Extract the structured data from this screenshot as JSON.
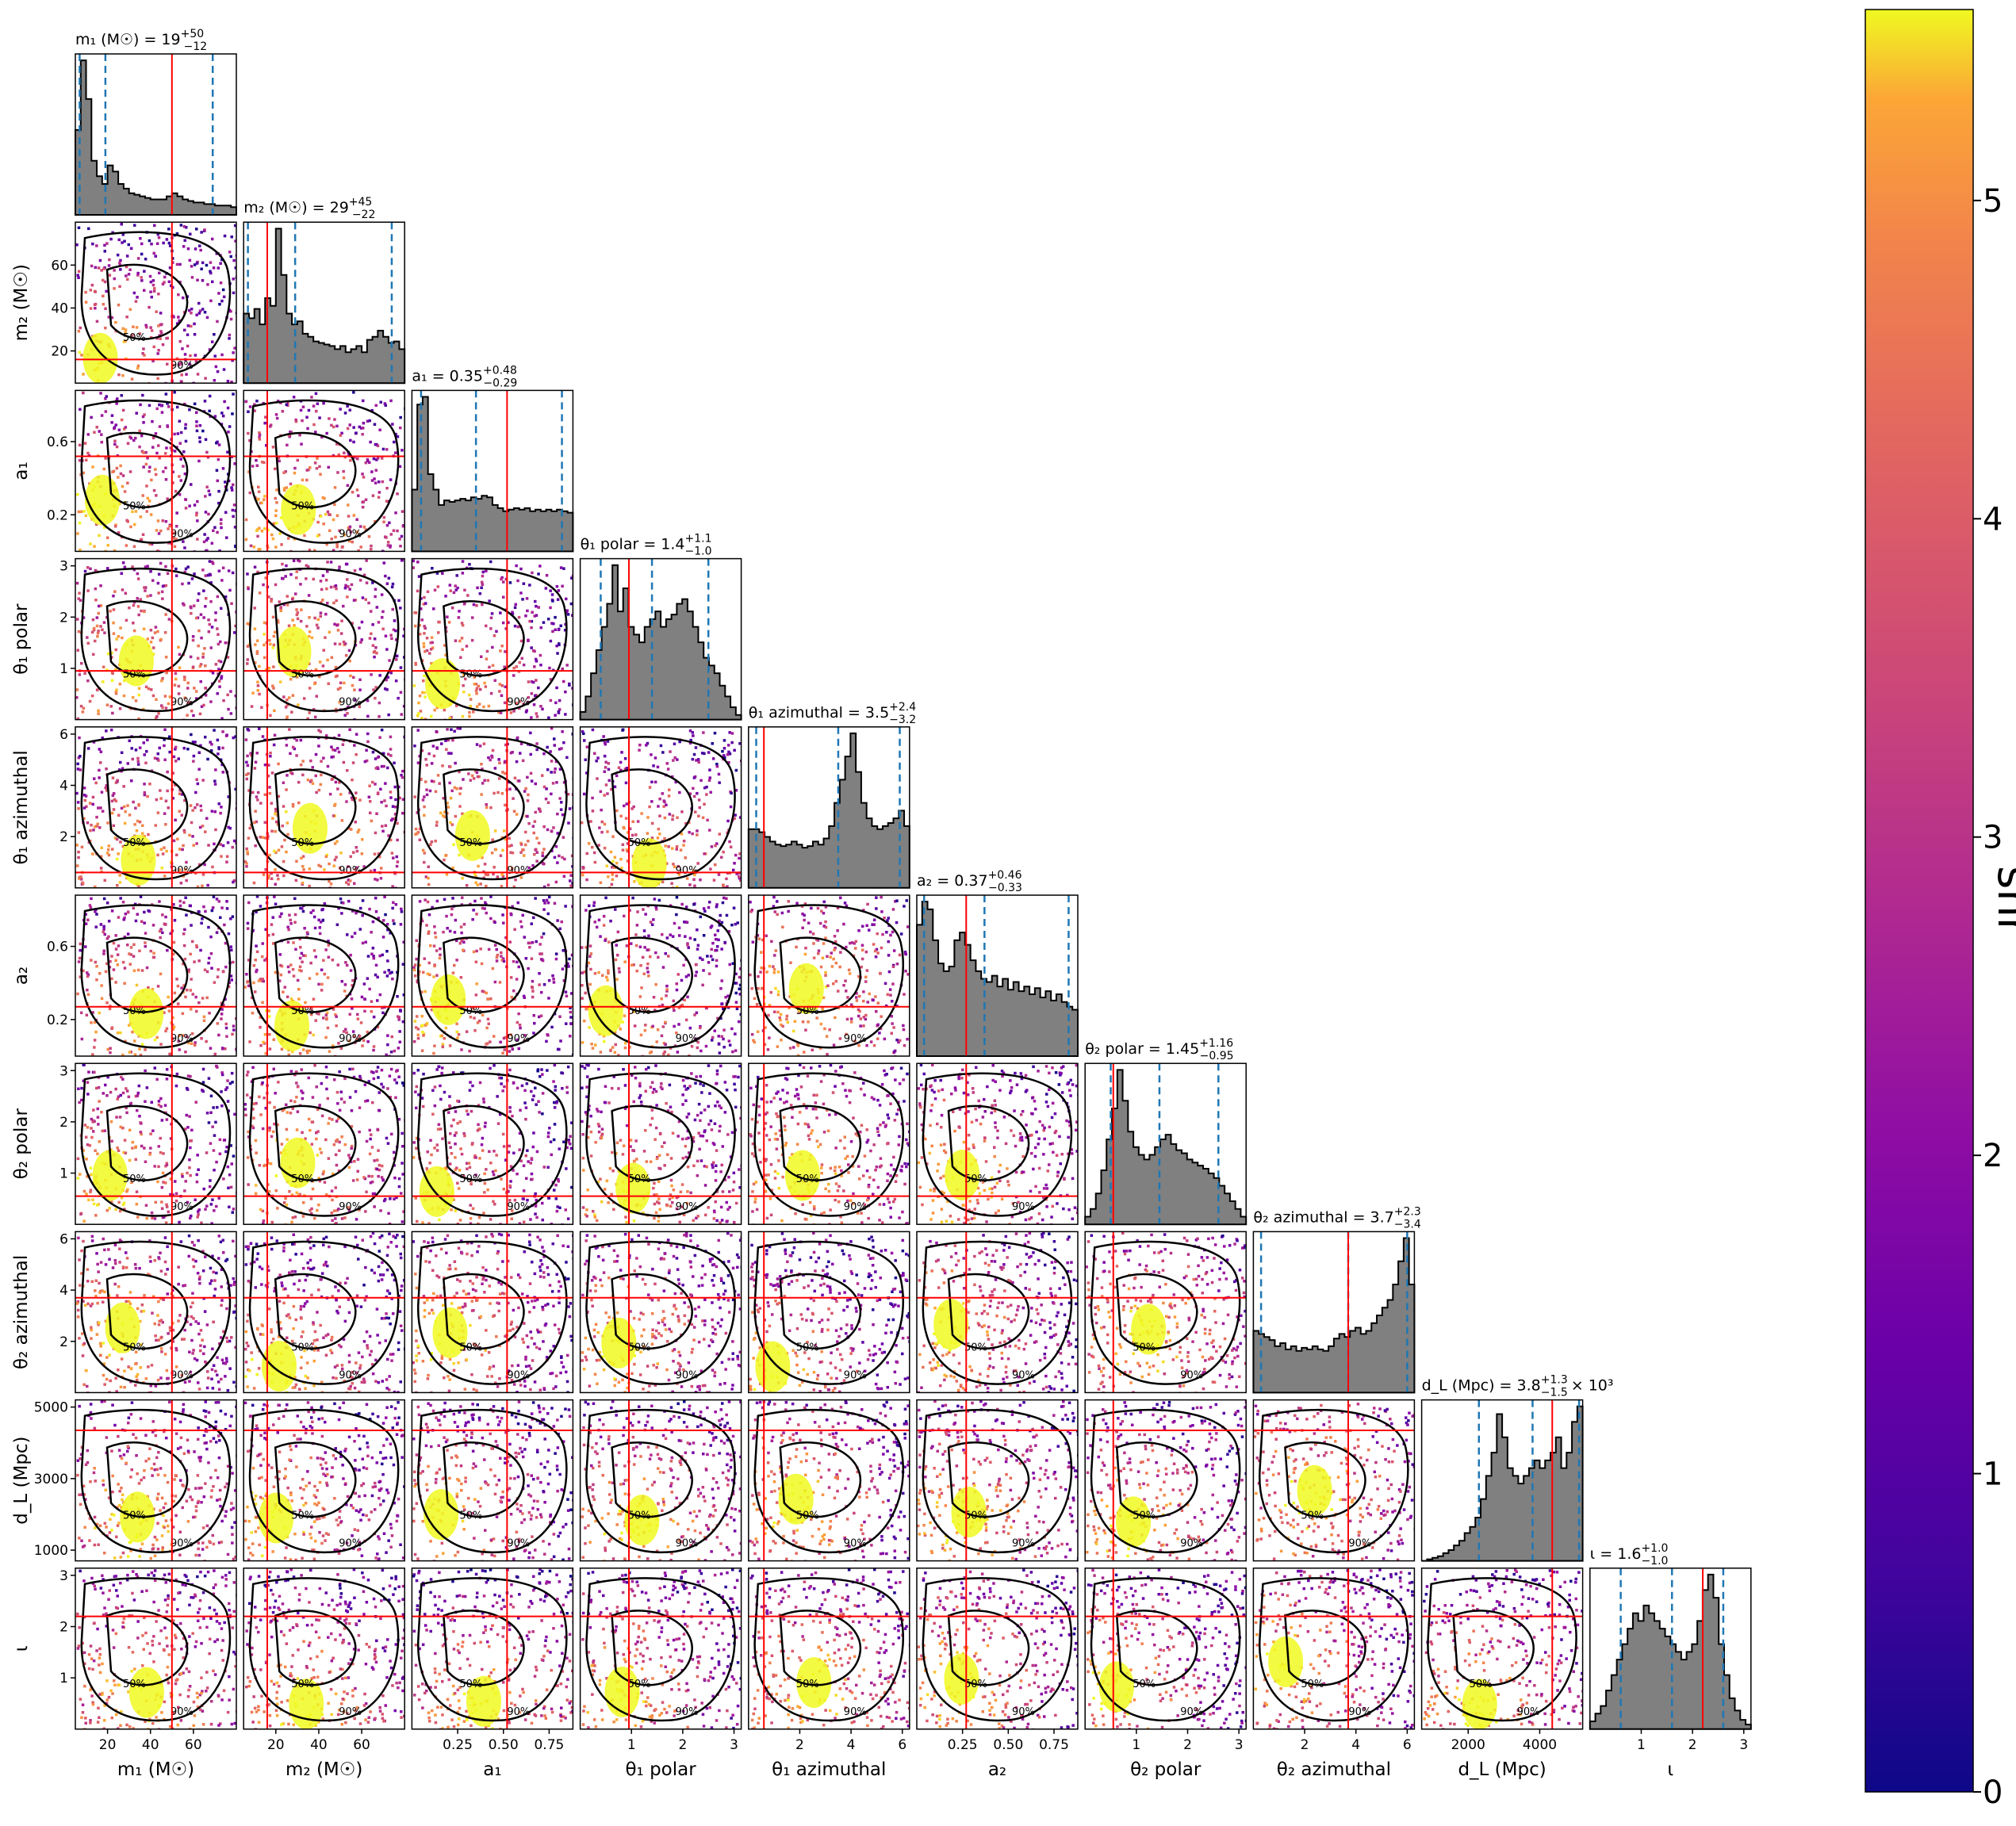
{
  "chart_data": {
    "type": "corner",
    "color_metric": "snr",
    "colorbar": {
      "label": "snr",
      "ticks": [
        "0",
        "1",
        "2",
        "3",
        "4",
        "5"
      ],
      "range": [
        0,
        5.6
      ],
      "colormap": "plasma"
    },
    "colors": {
      "hist_fill": "#808080",
      "truth": "#ff0000",
      "quantile": "#1f77b4",
      "contour": "#000000"
    },
    "contour_labels": [
      "50%",
      "90%"
    ],
    "parameters": [
      {
        "id": "m1",
        "axis_label": "m₁ (M☉)",
        "title": "m₁ (M☉) = 19",
        "title_sup": "+50",
        "title_sub": "−12",
        "range": [
          5,
          80
        ],
        "ticks": [
          20,
          40,
          60
        ],
        "tick_labels": [
          "20",
          "40",
          "60"
        ],
        "truth": 50,
        "quantiles": [
          7,
          19,
          69
        ],
        "hist": [
          0.55,
          1,
          0.75,
          0.35,
          0.25,
          0.2,
          0.32,
          0.28,
          0.2,
          0.17,
          0.14,
          0.13,
          0.12,
          0.11,
          0.1,
          0.1,
          0.1,
          0.12,
          0.14,
          0.12,
          0.1,
          0.09,
          0.08,
          0.08,
          0.07,
          0.07,
          0.06,
          0.06,
          0.06,
          0.05
        ]
      },
      {
        "id": "m2",
        "axis_label": "m₂ (M☉)",
        "title": "m₂ (M☉) = 29",
        "title_sup": "+45",
        "title_sub": "−22",
        "range": [
          5,
          80
        ],
        "ticks": [
          20,
          40,
          60
        ],
        "tick_labels": [
          "20",
          "40",
          "60"
        ],
        "truth": 16,
        "quantiles": [
          7,
          29,
          74
        ],
        "hist": [
          0.45,
          0.42,
          0.48,
          0.38,
          0.55,
          0.5,
          1,
          0.7,
          0.45,
          0.38,
          0.4,
          0.32,
          0.3,
          0.27,
          0.26,
          0.25,
          0.24,
          0.22,
          0.24,
          0.2,
          0.22,
          0.24,
          0.2,
          0.28,
          0.3,
          0.34,
          0.3,
          0.26,
          0.27,
          0.22
        ]
      },
      {
        "id": "a1",
        "axis_label": "a₁",
        "title": "a₁ = 0.35",
        "title_sup": "+0.48",
        "title_sub": "−0.29",
        "range": [
          0,
          0.88
        ],
        "ticks": [
          0.2,
          0.6
        ],
        "tick_labels": [
          "0.2",
          "0.6"
        ],
        "bottom_ticks": [
          0.25,
          0.5,
          0.75
        ],
        "bottom_tick_labels": [
          "0.25",
          "0.50",
          "0.75"
        ],
        "truth": 0.52,
        "quantiles": [
          0.05,
          0.35,
          0.82
        ],
        "hist": [
          0.4,
          0.95,
          1,
          0.5,
          0.4,
          0.3,
          0.33,
          0.32,
          0.33,
          0.34,
          0.33,
          0.35,
          0.34,
          0.36,
          0.35,
          0.3,
          0.28,
          0.26,
          0.27,
          0.28,
          0.27,
          0.28,
          0.26,
          0.27,
          0.26,
          0.27,
          0.26,
          0.27,
          0.26,
          0.25
        ]
      },
      {
        "id": "theta1_polar",
        "axis_label": "θ₁ polar",
        "title": "θ₁ polar = 1.4",
        "title_sup": "+1.1",
        "title_sub": "−1.0",
        "range": [
          0,
          3.14
        ],
        "ticks": [
          1,
          2,
          3
        ],
        "tick_labels": [
          "1",
          "2",
          "3"
        ],
        "truth": 0.95,
        "quantiles": [
          0.4,
          1.4,
          2.5
        ],
        "hist": [
          0.05,
          0.15,
          0.3,
          0.45,
          0.6,
          0.75,
          1,
          0.7,
          0.85,
          0.6,
          0.55,
          0.5,
          0.6,
          0.65,
          0.7,
          0.6,
          0.65,
          0.68,
          0.75,
          0.78,
          0.7,
          0.6,
          0.5,
          0.4,
          0.35,
          0.3,
          0.22,
          0.15,
          0.08,
          0.03
        ]
      },
      {
        "id": "theta1_azimuthal",
        "axis_label": "θ₁ azimuthal",
        "title": "θ₁ azimuthal = 3.5",
        "title_sup": "+2.4",
        "title_sub": "−3.2",
        "range": [
          0,
          6.28
        ],
        "ticks": [
          2,
          4,
          6
        ],
        "tick_labels": [
          "2",
          "4",
          "6"
        ],
        "truth": 0.6,
        "quantiles": [
          0.3,
          3.5,
          5.9
        ],
        "hist": [
          0.38,
          0.38,
          0.36,
          0.33,
          0.3,
          0.28,
          0.27,
          0.28,
          0.3,
          0.28,
          0.26,
          0.27,
          0.3,
          0.28,
          0.32,
          0.4,
          0.55,
          0.7,
          0.85,
          1,
          0.75,
          0.55,
          0.45,
          0.4,
          0.38,
          0.4,
          0.42,
          0.45,
          0.5,
          0.4
        ]
      },
      {
        "id": "a2",
        "axis_label": "a₂",
        "title": "a₂ = 0.37",
        "title_sup": "+0.46",
        "title_sub": "−0.33",
        "range": [
          0,
          0.88
        ],
        "ticks": [
          0.2,
          0.6
        ],
        "tick_labels": [
          "0.2",
          "0.6"
        ],
        "bottom_ticks": [
          0.25,
          0.5,
          0.75
        ],
        "bottom_tick_labels": [
          "0.25",
          "0.50",
          "0.75"
        ],
        "truth": 0.27,
        "quantiles": [
          0.04,
          0.37,
          0.83
        ],
        "hist": [
          0.85,
          1,
          0.95,
          0.75,
          0.6,
          0.55,
          0.58,
          0.75,
          0.8,
          0.72,
          0.62,
          0.55,
          0.5,
          0.48,
          0.52,
          0.45,
          0.5,
          0.43,
          0.48,
          0.42,
          0.45,
          0.4,
          0.44,
          0.38,
          0.42,
          0.36,
          0.4,
          0.35,
          0.32,
          0.3
        ]
      },
      {
        "id": "theta2_polar",
        "axis_label": "θ₂ polar",
        "title": "θ₂ polar = 1.45",
        "title_sup": "+1.16",
        "title_sub": "−0.95",
        "range": [
          0,
          3.14
        ],
        "ticks": [
          1,
          2,
          3
        ],
        "tick_labels": [
          "1",
          "2",
          "3"
        ],
        "truth": 0.55,
        "quantiles": [
          0.5,
          1.45,
          2.6
        ],
        "hist": [
          0.05,
          0.1,
          0.2,
          0.35,
          0.55,
          0.75,
          1,
          0.8,
          0.6,
          0.5,
          0.45,
          0.42,
          0.45,
          0.5,
          0.55,
          0.58,
          0.52,
          0.48,
          0.46,
          0.42,
          0.4,
          0.38,
          0.36,
          0.33,
          0.3,
          0.25,
          0.2,
          0.15,
          0.1,
          0.05
        ]
      },
      {
        "id": "theta2_azimuthal",
        "axis_label": "θ₂ azimuthal",
        "title": "θ₂ azimuthal = 3.7",
        "title_sup": "+2.3",
        "title_sub": "−3.4",
        "range": [
          0,
          6.28
        ],
        "ticks": [
          2,
          4,
          6
        ],
        "tick_labels": [
          "2",
          "4",
          "6"
        ],
        "truth": 3.7,
        "quantiles": [
          0.3,
          3.7,
          6.0
        ],
        "hist": [
          0.4,
          0.38,
          0.36,
          0.34,
          0.3,
          0.32,
          0.28,
          0.3,
          0.27,
          0.29,
          0.28,
          0.3,
          0.28,
          0.27,
          0.3,
          0.35,
          0.38,
          0.36,
          0.4,
          0.42,
          0.38,
          0.4,
          0.45,
          0.5,
          0.55,
          0.6,
          0.7,
          0.85,
          1,
          0.7
        ]
      },
      {
        "id": "dL",
        "axis_label": "d_L (Mpc)",
        "title": "d_L (Mpc) = 3.8",
        "title_sup": "+1.3",
        "title_sub": "−1.5",
        "title_suffix": "× 10³",
        "range": [
          700,
          5200
        ],
        "ticks": [
          1000,
          3000,
          5000
        ],
        "tick_labels": [
          "1000",
          "3000",
          "5000"
        ],
        "bottom_ticks": [
          2000,
          4000
        ],
        "bottom_tick_labels": [
          "2000",
          "4000"
        ],
        "truth": 4350,
        "quantiles": [
          2300,
          3800,
          5100
        ],
        "hist": [
          0.0,
          0.01,
          0.02,
          0.03,
          0.05,
          0.07,
          0.1,
          0.13,
          0.18,
          0.22,
          0.28,
          0.4,
          0.55,
          0.7,
          0.95,
          0.8,
          0.6,
          0.55,
          0.5,
          0.55,
          0.6,
          0.65,
          0.6,
          0.65,
          0.7,
          0.8,
          0.6,
          0.7,
          0.9,
          1
        ]
      },
      {
        "id": "iota",
        "axis_label": "ι",
        "title": "ι = 1.6",
        "title_sup": "+1.0",
        "title_sub": "−1.0",
        "range": [
          0,
          3.14
        ],
        "ticks": [
          1,
          2,
          3
        ],
        "tick_labels": [
          "1",
          "2",
          "3"
        ],
        "truth": 2.2,
        "quantiles": [
          0.6,
          1.6,
          2.6
        ],
        "hist": [
          0.05,
          0.1,
          0.15,
          0.25,
          0.35,
          0.45,
          0.55,
          0.65,
          0.75,
          0.7,
          0.8,
          0.75,
          0.7,
          0.65,
          0.6,
          0.55,
          0.5,
          0.45,
          0.5,
          0.55,
          0.7,
          0.9,
          1,
          0.85,
          0.55,
          0.35,
          0.2,
          0.12,
          0.06,
          0.03
        ]
      }
    ]
  }
}
